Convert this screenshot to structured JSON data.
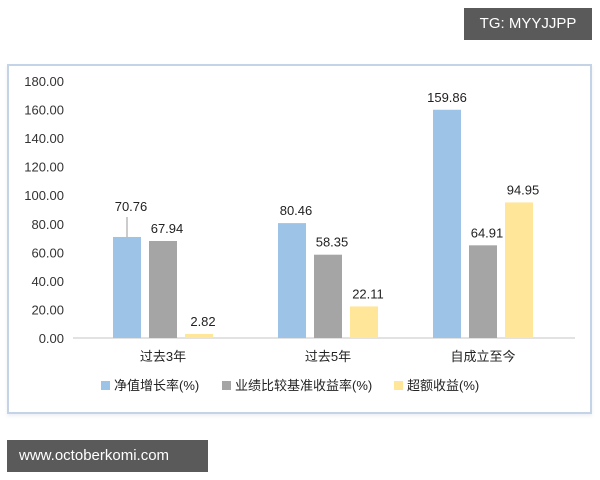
{
  "watermarks": {
    "top_right": "TG: MYYJJPP",
    "bottom_left": "www.octoberkomi.com"
  },
  "colors": {
    "series_1": "#9dc3e6",
    "series_2": "#a5a5a5",
    "series_3": "#ffe699",
    "axis": "#d9d9d9",
    "frame_border": "#c5d3e6",
    "watermark_bg": "#5a5a5a"
  },
  "chart_data": {
    "type": "bar",
    "title": "",
    "xlabel": "",
    "ylabel": "",
    "categories": [
      "过去3年",
      "过去5年",
      "自成立至今"
    ],
    "series": [
      {
        "name": "净值增长率(%)",
        "values": [
          70.76,
          80.46,
          159.86
        ]
      },
      {
        "name": "业绩比较基准收益率(%)",
        "values": [
          67.94,
          58.35,
          64.91
        ]
      },
      {
        "name": "超额收益(%)",
        "values": [
          2.82,
          22.11,
          94.95
        ]
      }
    ],
    "data_labels": [
      [
        "70.76",
        "80.46",
        "159.86"
      ],
      [
        "67.94",
        "58.35",
        "64.91"
      ],
      [
        "2.82",
        "22.11",
        "94.95"
      ]
    ],
    "ylim": [
      0,
      180
    ],
    "yticks": [
      "0.00",
      "20.00",
      "40.00",
      "60.00",
      "80.00",
      "100.00",
      "120.00",
      "140.00",
      "160.00",
      "180.00"
    ],
    "grid": false,
    "legend_position": "bottom"
  }
}
